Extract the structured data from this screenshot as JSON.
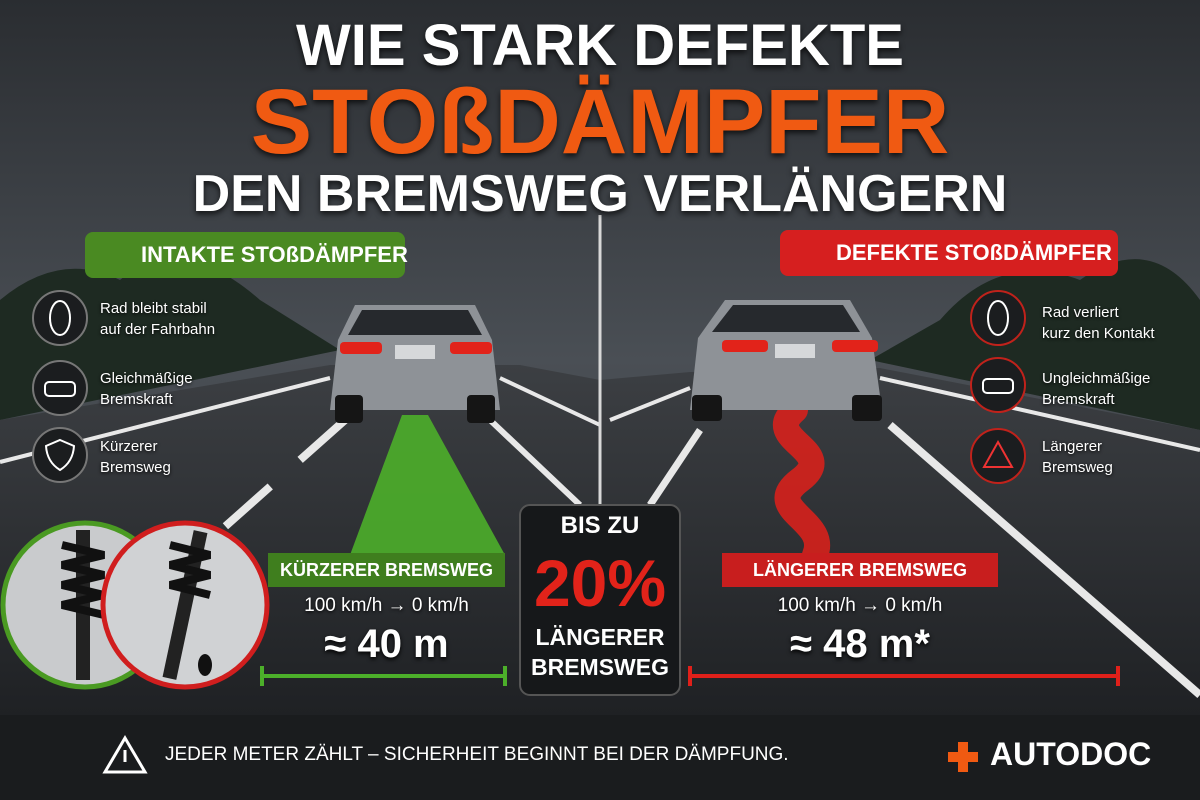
{
  "header": {
    "title_lines": [
      "WIE STARK DEFEKTE",
      "STOßDÄMPFER",
      "DEN BREMSWEG VERLÄNGERN"
    ]
  },
  "left": {
    "badge": "INTAKTE STOßDÄMPFER",
    "features": [
      {
        "lines": [
          "Rad bleibt stabil",
          "auf der Fahrbahn"
        ]
      },
      {
        "lines": [
          "Gleichmäßige",
          "Bremskraft"
        ]
      },
      {
        "lines": [
          "Kürzerer",
          "Bremsweg"
        ]
      }
    ],
    "result": {
      "label": "KÜRZERER BREMSWEG",
      "speed": "100 km/h → 0 km/h",
      "distance": "≈ 40 m"
    }
  },
  "center": {
    "lines": [
      "BIS ZU",
      "20%",
      "LÄNGERER",
      "BREMSWEG"
    ]
  },
  "right": {
    "badge": "DEFEKTE STOßDÄMPFER",
    "features": [
      {
        "lines": [
          "Rad verliert",
          "kurz den Kontakt"
        ]
      },
      {
        "lines": [
          "Ungleichmäßige",
          "Bremskraft"
        ]
      },
      {
        "lines": [
          "Längerer",
          "Bremsweg"
        ]
      }
    ],
    "result": {
      "label": "LÄNGERER BREMSWEG",
      "speed": "100 km/h → 0 km/h",
      "distance": "≈ 48 m*"
    }
  },
  "footer": {
    "note": "JEDER METER ZÄHLT – SICHERHEIT BEGINNT BEI DER DÄMPFUNG.",
    "brand": "AUTODOC"
  }
}
